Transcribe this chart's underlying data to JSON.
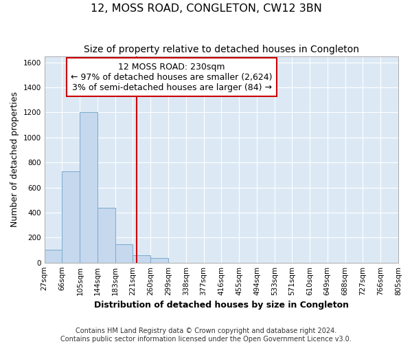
{
  "title": "12, MOSS ROAD, CONGLETON, CW12 3BN",
  "subtitle": "Size of property relative to detached houses in Congleton",
  "xlabel": "Distribution of detached houses by size in Congleton",
  "ylabel": "Number of detached properties",
  "footnote1": "Contains HM Land Registry data © Crown copyright and database right 2024.",
  "footnote2": "Contains public sector information licensed under the Open Government Licence v3.0.",
  "annotation_line1": "12 MOSS ROAD: 230sqm",
  "annotation_line2": "← 97% of detached houses are smaller (2,624)",
  "annotation_line3": "3% of semi-detached houses are larger (84) →",
  "bar_color": "#c5d8ee",
  "bar_edge_color": "#7aaacb",
  "vline_color": "#cc0000",
  "annotation_box_edge": "#cc0000",
  "fig_background_color": "#ffffff",
  "plot_background_color": "#dce9f5",
  "grid_color": "#ffffff",
  "bin_edges": [
    27,
    66,
    105,
    144,
    183,
    221,
    260,
    299,
    338,
    377,
    416,
    455,
    494,
    533,
    571,
    610,
    649,
    688,
    727,
    766,
    805
  ],
  "bin_heights": [
    100,
    730,
    1200,
    440,
    145,
    60,
    35,
    0,
    0,
    0,
    0,
    0,
    0,
    0,
    0,
    0,
    0,
    0,
    0,
    0
  ],
  "vline_x": 230,
  "ylim": [
    0,
    1650
  ],
  "yticks": [
    0,
    200,
    400,
    600,
    800,
    1000,
    1200,
    1400,
    1600
  ],
  "title_fontsize": 11.5,
  "subtitle_fontsize": 10,
  "axis_label_fontsize": 9,
  "tick_fontsize": 7.5,
  "annotation_fontsize": 9,
  "footnote_fontsize": 7
}
